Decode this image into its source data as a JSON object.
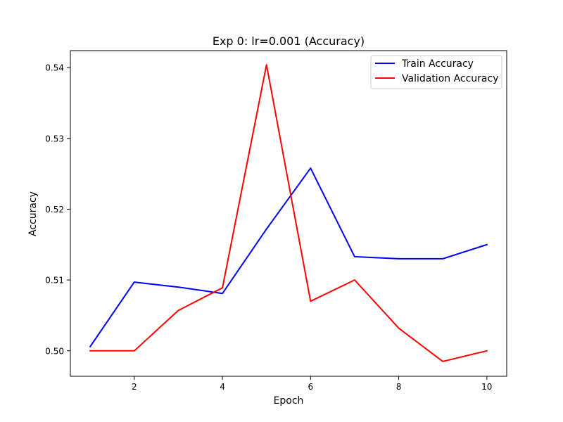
{
  "chart_data": {
    "type": "line",
    "title": "Exp 0: lr=0.001 (Accuracy)",
    "xlabel": "Epoch",
    "ylabel": "Accuracy",
    "xlim": [
      0.55,
      10.45
    ],
    "ylim": [
      0.4964,
      0.5424
    ],
    "x": [
      1,
      2,
      3,
      4,
      5,
      6,
      7,
      8,
      9,
      10
    ],
    "x_ticks": [
      2,
      4,
      6,
      8,
      10
    ],
    "y_ticks": [
      0.5,
      0.51,
      0.52,
      0.53,
      0.54
    ],
    "y_tick_labels": [
      "0.50",
      "0.51",
      "0.52",
      "0.53",
      "0.54"
    ],
    "grid": false,
    "legend_position": "top-right",
    "series": [
      {
        "name": "Train Accuracy",
        "color": "#0000ff",
        "values": [
          0.5006,
          0.5097,
          0.509,
          0.5081,
          0.5172,
          0.5258,
          0.5133,
          0.513,
          0.513,
          0.515
        ]
      },
      {
        "name": "Validation Accuracy",
        "color": "#ff0000",
        "values": [
          0.5,
          0.5,
          0.5057,
          0.5089,
          0.5404,
          0.507,
          0.51,
          0.5032,
          0.4985,
          0.5
        ]
      }
    ]
  }
}
